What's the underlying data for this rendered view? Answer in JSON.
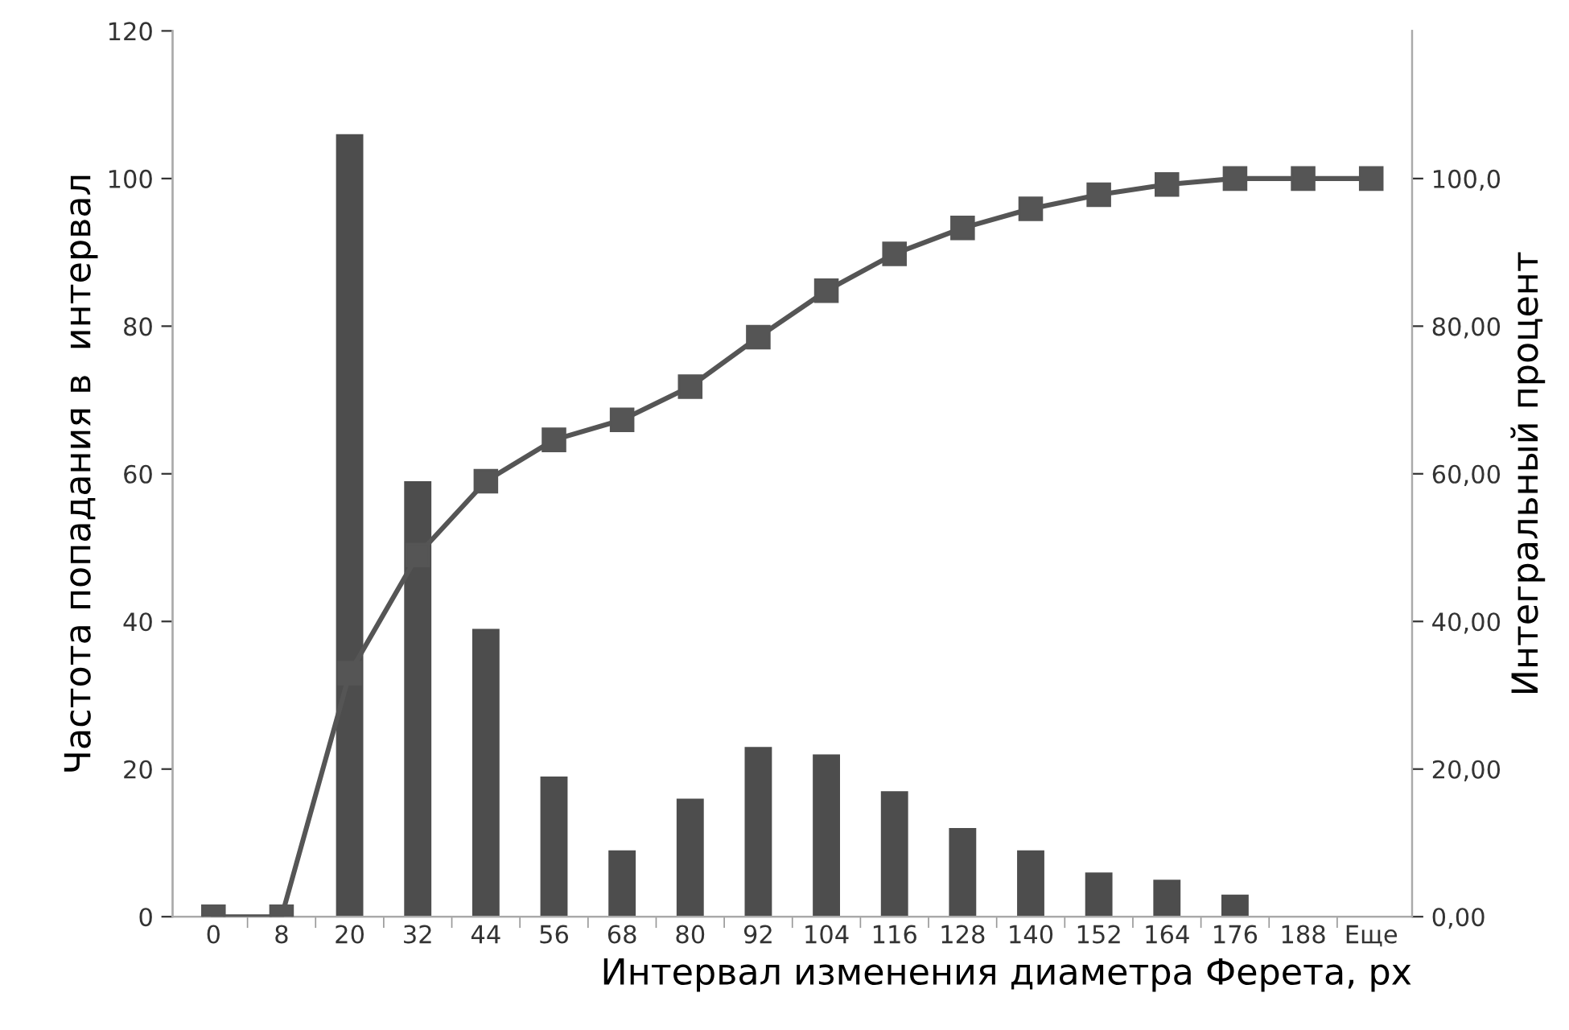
{
  "chart_data": {
    "type": "bar",
    "xlabel": "Интервал изменения диаметра Ферета, px",
    "ylabel": "Частота попадания в  интервал",
    "y2label": "Интегральный процент",
    "categories": [
      "0",
      "8",
      "20",
      "32",
      "44",
      "56",
      "68",
      "80",
      "92",
      "104",
      "116",
      "128",
      "140",
      "152",
      "164",
      "176",
      "188",
      "Еще"
    ],
    "series": [
      {
        "color": "#4d4d4d",
        "values": [
          0,
          0,
          106,
          59,
          39,
          19,
          9,
          16,
          23,
          22,
          17,
          12,
          9,
          6,
          5,
          3,
          0,
          0
        ]
      },
      {
        "type": "line",
        "axis": "y2",
        "color": "#555555",
        "marker": "square",
        "values": [
          0,
          0,
          33,
          49,
          59,
          64.6,
          67.3,
          71.8,
          78.5,
          84.8,
          89.8,
          93.3,
          95.9,
          97.8,
          99.2,
          100,
          100,
          100
        ]
      }
    ],
    "ylim": [
      0,
      120
    ],
    "yticks": [
      0,
      20,
      40,
      60,
      80,
      100,
      120
    ],
    "y2lim": [
      0,
      120
    ],
    "y2ticks": [
      {
        "value": 0,
        "label": "0,00"
      },
      {
        "value": 20,
        "label": "20,00"
      },
      {
        "value": 40,
        "label": "40,00"
      },
      {
        "value": 60,
        "label": "60,00"
      },
      {
        "value": 80,
        "label": "80,00"
      },
      {
        "value": 100,
        "label": "100,0"
      }
    ],
    "grid": false,
    "legend": false
  }
}
